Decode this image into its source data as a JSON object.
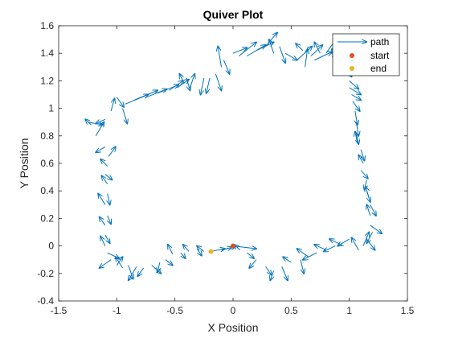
{
  "chart_data": {
    "type": "scatter",
    "title": "Quiver Plot",
    "xlabel": "X Position",
    "ylabel": "Y Position",
    "xlim": [
      -1.5,
      1.5
    ],
    "ylim": [
      -0.4,
      1.6
    ],
    "xticks": [
      "-1.5",
      "-1",
      "-0.5",
      "0",
      "0.5",
      "1",
      "1.5"
    ],
    "yticks": [
      "-0.4",
      "-0.2",
      "0",
      "0.2",
      "0.4",
      "0.6",
      "0.8",
      "1",
      "1.2",
      "1.4",
      "1.6"
    ],
    "grid": false,
    "legend": {
      "position": "top-right",
      "entries": [
        "path",
        "start",
        "end"
      ]
    },
    "colors": {
      "path": "#0072BD",
      "start": "#D95319",
      "end": "#EDB120"
    },
    "start": {
      "x": 0.0,
      "y": 0.0
    },
    "end": {
      "x": -0.19,
      "y": -0.04
    },
    "path": [
      {
        "x": 0.0,
        "y": 0.0,
        "u": 0.2,
        "v": -0.02
      },
      {
        "x": -0.19,
        "y": -0.04,
        "u": 0.12,
        "v": 0.02
      },
      {
        "x": -0.1,
        "y": -0.03,
        "u": 0.09,
        "v": 0.02
      },
      {
        "x": -0.05,
        "y": -0.02,
        "u": 0.07,
        "v": 0.015
      },
      {
        "x": -0.25,
        "y": -0.04,
        "u": -0.06,
        "v": 0.04
      },
      {
        "x": -0.31,
        "y": -0.02,
        "u": 0.04,
        "v": -0.05
      },
      {
        "x": -0.38,
        "y": -0.04,
        "u": -0.05,
        "v": 0.05
      },
      {
        "x": -0.45,
        "y": -0.05,
        "u": 0.04,
        "v": -0.04
      },
      {
        "x": -0.52,
        "y": -0.06,
        "u": -0.04,
        "v": 0.07
      },
      {
        "x": -0.58,
        "y": -0.1,
        "u": 0.06,
        "v": -0.04
      },
      {
        "x": -0.63,
        "y": -0.12,
        "u": -0.02,
        "v": -0.07
      },
      {
        "x": -0.7,
        "y": -0.14,
        "u": 0.08,
        "v": -0.06
      },
      {
        "x": -0.77,
        "y": -0.16,
        "u": -0.05,
        "v": -0.06
      },
      {
        "x": -0.83,
        "y": -0.15,
        "u": -0.07,
        "v": -0.1
      },
      {
        "x": -0.9,
        "y": -0.14,
        "u": 0.04,
        "v": -0.1
      },
      {
        "x": -0.95,
        "y": -0.16,
        "u": -0.06,
        "v": 0.08
      },
      {
        "x": -1.0,
        "y": -0.14,
        "u": 0.05,
        "v": 0.06
      },
      {
        "x": -1.05,
        "y": -0.1,
        "u": -0.1,
        "v": -0.06
      },
      {
        "x": -1.08,
        "y": -0.05,
        "u": 0.1,
        "v": -0.04
      },
      {
        "x": -1.1,
        "y": 0.0,
        "u": -0.04,
        "v": 0.07
      },
      {
        "x": -1.1,
        "y": 0.08,
        "u": 0.04,
        "v": -0.06
      },
      {
        "x": -1.1,
        "y": 0.15,
        "u": -0.05,
        "v": 0.06
      },
      {
        "x": -1.08,
        "y": 0.22,
        "u": 0.03,
        "v": -0.06
      },
      {
        "x": -1.1,
        "y": 0.3,
        "u": -0.06,
        "v": 0.08
      },
      {
        "x": -1.08,
        "y": 0.38,
        "u": 0.02,
        "v": -0.08
      },
      {
        "x": -1.08,
        "y": 0.45,
        "u": -0.05,
        "v": 0.06
      },
      {
        "x": -1.1,
        "y": 0.52,
        "u": 0.06,
        "v": -0.04
      },
      {
        "x": -1.08,
        "y": 0.58,
        "u": -0.06,
        "v": 0.05
      },
      {
        "x": -1.07,
        "y": 0.65,
        "u": 0.06,
        "v": 0.07
      },
      {
        "x": -1.1,
        "y": 0.72,
        "u": -0.08,
        "v": -0.04
      },
      {
        "x": -1.18,
        "y": 0.8,
        "u": 0.07,
        "v": 0.1
      },
      {
        "x": -1.22,
        "y": 0.88,
        "u": -0.05,
        "v": 0.04
      },
      {
        "x": -1.25,
        "y": 0.9,
        "u": 0.13,
        "v": -0.02
      },
      {
        "x": -1.1,
        "y": 0.92,
        "u": -0.08,
        "v": -0.03
      },
      {
        "x": -1.05,
        "y": 0.98,
        "u": 0.03,
        "v": 0.09
      },
      {
        "x": -1.0,
        "y": 1.08,
        "u": 0.06,
        "v": -0.07
      },
      {
        "x": -0.95,
        "y": 1.0,
        "u": 0.04,
        "v": -0.11
      },
      {
        "x": -0.93,
        "y": 1.03,
        "u": 0.2,
        "v": 0.07
      },
      {
        "x": -0.85,
        "y": 1.06,
        "u": 0.2,
        "v": 0.07
      },
      {
        "x": -0.75,
        "y": 1.08,
        "u": 0.18,
        "v": 0.06
      },
      {
        "x": -0.65,
        "y": 1.11,
        "u": 0.18,
        "v": 0.06
      },
      {
        "x": -0.55,
        "y": 1.13,
        "u": 0.12,
        "v": 0.07
      },
      {
        "x": -0.48,
        "y": 1.15,
        "u": 0.1,
        "v": 0.06
      },
      {
        "x": -0.42,
        "y": 1.18,
        "u": -0.04,
        "v": 0.07
      },
      {
        "x": -0.4,
        "y": 1.22,
        "u": 0.03,
        "v": -0.09
      },
      {
        "x": -0.37,
        "y": 1.15,
        "u": 0.04,
        "v": 0.1
      },
      {
        "x": -0.25,
        "y": 1.22,
        "u": -0.03,
        "v": -0.12
      },
      {
        "x": -0.2,
        "y": 1.22,
        "u": -0.03,
        "v": -0.11
      },
      {
        "x": -0.15,
        "y": 1.25,
        "u": 0.05,
        "v": -0.12
      },
      {
        "x": -0.1,
        "y": 1.3,
        "u": -0.03,
        "v": 0.15
      },
      {
        "x": -0.08,
        "y": 1.35,
        "u": 0.05,
        "v": -0.1
      },
      {
        "x": 0.0,
        "y": 1.4,
        "u": 0.12,
        "v": 0.04
      },
      {
        "x": 0.05,
        "y": 1.38,
        "u": 0.15,
        "v": 0.1
      },
      {
        "x": 0.12,
        "y": 1.38,
        "u": 0.16,
        "v": 0.08
      },
      {
        "x": 0.2,
        "y": 1.42,
        "u": 0.15,
        "v": 0.06
      },
      {
        "x": 0.28,
        "y": 1.45,
        "u": 0.1,
        "v": 0.1
      },
      {
        "x": 0.35,
        "y": 1.4,
        "u": -0.04,
        "v": 0.1
      },
      {
        "x": 0.4,
        "y": 1.45,
        "u": 0.05,
        "v": -0.12
      },
      {
        "x": 0.45,
        "y": 1.4,
        "u": 0.1,
        "v": -0.05
      },
      {
        "x": 0.55,
        "y": 1.35,
        "u": 0.13,
        "v": 0.1
      },
      {
        "x": 0.6,
        "y": 1.42,
        "u": -0.06,
        "v": 0.05
      },
      {
        "x": 0.62,
        "y": 1.3,
        "u": 0.02,
        "v": 0.13
      },
      {
        "x": 0.67,
        "y": 1.38,
        "u": 0.1,
        "v": 0.08
      },
      {
        "x": 0.7,
        "y": 1.35,
        "u": 0.15,
        "v": 0.06
      },
      {
        "x": 0.75,
        "y": 1.4,
        "u": -0.05,
        "v": 0.08
      },
      {
        "x": 0.8,
        "y": 1.4,
        "u": 0.1,
        "v": 0.12
      },
      {
        "x": 0.85,
        "y": 1.38,
        "u": 0.1,
        "v": -0.07
      },
      {
        "x": 0.9,
        "y": 1.35,
        "u": -0.05,
        "v": 0.08
      },
      {
        "x": 0.95,
        "y": 1.3,
        "u": 0.07,
        "v": -0.07
      },
      {
        "x": 0.98,
        "y": 1.25,
        "u": 0.08,
        "v": 0.05
      },
      {
        "x": 1.0,
        "y": 1.2,
        "u": 0.08,
        "v": -0.06
      },
      {
        "x": 1.0,
        "y": 1.15,
        "u": 0.1,
        "v": -0.05
      },
      {
        "x": 1.02,
        "y": 1.1,
        "u": 0.08,
        "v": -0.04
      },
      {
        "x": 1.03,
        "y": 1.05,
        "u": 0.06,
        "v": -0.07
      },
      {
        "x": 1.05,
        "y": 0.98,
        "u": 0.02,
        "v": -0.1
      },
      {
        "x": 1.06,
        "y": 0.9,
        "u": 0.02,
        "v": -0.1
      },
      {
        "x": 1.06,
        "y": 0.82,
        "u": 0.02,
        "v": -0.08
      },
      {
        "x": 1.07,
        "y": 0.75,
        "u": -0.02,
        "v": 0.08
      },
      {
        "x": 1.1,
        "y": 0.7,
        "u": 0.03,
        "v": -0.08
      },
      {
        "x": 1.12,
        "y": 0.6,
        "u": -0.04,
        "v": 0.06
      },
      {
        "x": 1.1,
        "y": 0.55,
        "u": 0.06,
        "v": -0.06
      },
      {
        "x": 1.15,
        "y": 0.48,
        "u": -0.02,
        "v": -0.07
      },
      {
        "x": 1.15,
        "y": 0.4,
        "u": 0.03,
        "v": -0.08
      },
      {
        "x": 1.17,
        "y": 0.35,
        "u": -0.03,
        "v": 0.08
      },
      {
        "x": 1.18,
        "y": 0.3,
        "u": 0.05,
        "v": -0.08
      },
      {
        "x": 1.18,
        "y": 0.22,
        "u": -0.03,
        "v": 0.08
      },
      {
        "x": 1.18,
        "y": 0.15,
        "u": 0.1,
        "v": -0.06
      },
      {
        "x": 1.2,
        "y": 0.1,
        "u": -0.05,
        "v": -0.08
      },
      {
        "x": 1.15,
        "y": 0.05,
        "u": 0.07,
        "v": -0.08
      },
      {
        "x": 1.12,
        "y": 0.0,
        "u": 0.05,
        "v": 0.1
      },
      {
        "x": 1.08,
        "y": -0.03,
        "u": -0.06,
        "v": 0.09
      },
      {
        "x": 1.0,
        "y": 0.05,
        "u": -0.1,
        "v": -0.05
      },
      {
        "x": 0.95,
        "y": 0.0,
        "u": -0.12,
        "v": 0.05
      },
      {
        "x": 0.88,
        "y": 0.0,
        "u": -0.1,
        "v": -0.04
      },
      {
        "x": 0.8,
        "y": -0.03,
        "u": -0.1,
        "v": 0.04
      },
      {
        "x": 0.72,
        "y": -0.05,
        "u": -0.12,
        "v": -0.05
      },
      {
        "x": 0.65,
        "y": -0.08,
        "u": -0.1,
        "v": 0.06
      },
      {
        "x": 0.58,
        "y": -0.1,
        "u": 0.03,
        "v": -0.1
      },
      {
        "x": 0.5,
        "y": -0.12,
        "u": -0.07,
        "v": 0.04
      },
      {
        "x": 0.42,
        "y": -0.15,
        "u": 0.05,
        "v": -0.1
      },
      {
        "x": 0.35,
        "y": -0.18,
        "u": -0.03,
        "v": -0.07
      },
      {
        "x": 0.28,
        "y": -0.15,
        "u": 0.05,
        "v": -0.06
      },
      {
        "x": 0.2,
        "y": -0.1,
        "u": -0.06,
        "v": -0.06
      },
      {
        "x": 0.12,
        "y": -0.05,
        "u": 0.06,
        "v": -0.04
      },
      {
        "x": 0.06,
        "y": -0.03,
        "u": -0.05,
        "v": 0.04
      }
    ]
  }
}
